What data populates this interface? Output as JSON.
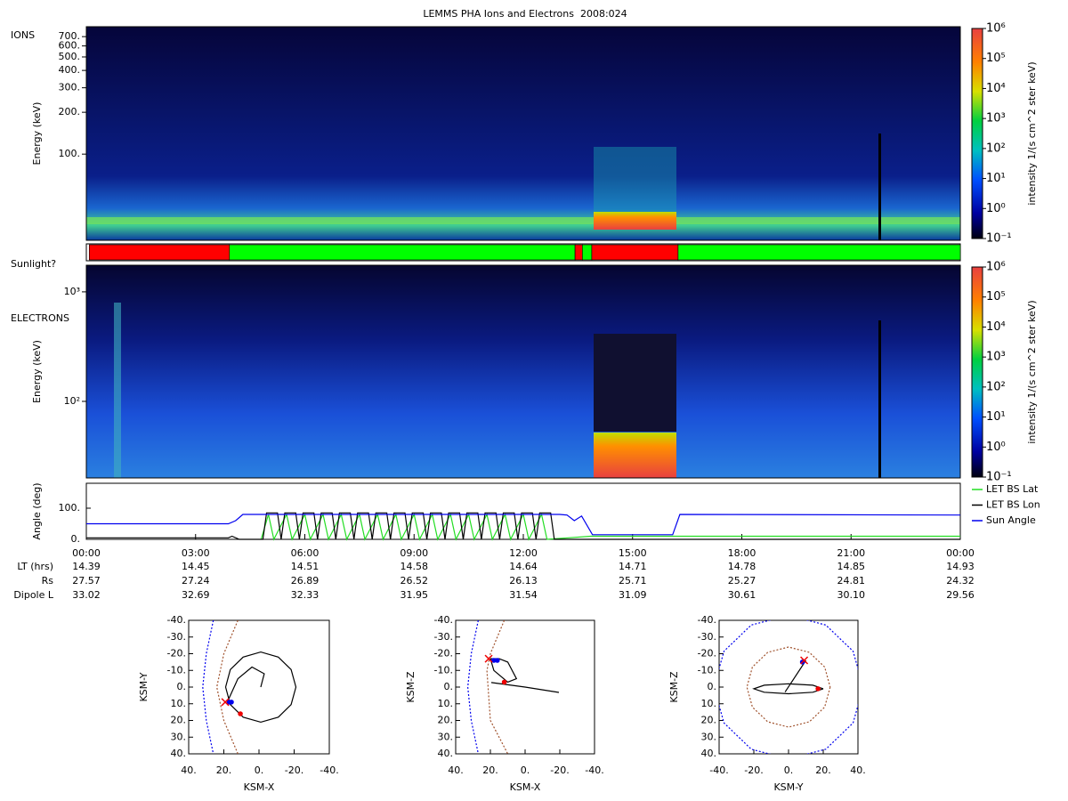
{
  "title": "LEMMS PHA Ions and Electrons  2008:024",
  "chart_data": [
    {
      "type": "spectrogram",
      "panel_label": "IONS",
      "ylabel": "Energy (keV)",
      "yscale": "log",
      "ylim": [
        24,
        825
      ],
      "yticks": [
        {
          "value": 100,
          "label": "100."
        },
        {
          "value": 200,
          "label": "200."
        },
        {
          "value": 300,
          "label": "300."
        },
        {
          "value": 400,
          "label": "400."
        },
        {
          "value": 500,
          "label": "500."
        },
        {
          "value": 600,
          "label": "600."
        },
        {
          "value": 700,
          "label": "700."
        }
      ],
      "colorbar": {
        "label": "intensity 1/(s cm^2 ster keV)",
        "scale": "log",
        "lim": [
          0.1,
          1000000
        ],
        "ticks": [
          {
            "value": 0.1,
            "label": "10⁻¹"
          },
          {
            "value": 1,
            "label": "10⁰"
          },
          {
            "value": 10,
            "label": "10¹"
          },
          {
            "value": 100,
            "label": "10²"
          },
          {
            "value": 1000,
            "label": "10³"
          },
          {
            "value": 10000,
            "label": "10⁴"
          },
          {
            "value": 100000,
            "label": "10⁵"
          },
          {
            "value": 1000000,
            "label": "10⁶"
          }
        ]
      }
    },
    {
      "type": "timeline",
      "label": "Sunlight?",
      "xlim": [
        0,
        24
      ],
      "segments": [
        {
          "start": 0.08,
          "end": 3.93,
          "color": "#ff0000"
        },
        {
          "start": 3.93,
          "end": 13.42,
          "color": "#00ff00"
        },
        {
          "start": 13.42,
          "end": 13.62,
          "color": "#ff0000"
        },
        {
          "start": 13.62,
          "end": 13.88,
          "color": "#00ff00"
        },
        {
          "start": 13.88,
          "end": 16.25,
          "color": "#ff0000"
        },
        {
          "start": 16.25,
          "end": 24,
          "color": "#00ff00"
        }
      ]
    },
    {
      "type": "spectrogram",
      "panel_label": "ELECTRONS",
      "ylabel": "Energy (keV)",
      "yscale": "log",
      "ylim": [
        20,
        1750
      ],
      "yticks": [
        {
          "value": 100,
          "label": "10²"
        },
        {
          "value": 1000,
          "label": "10³"
        }
      ],
      "colorbar": {
        "label": "intensity 1/(s cm^2 ster keV)",
        "scale": "log",
        "lim": [
          0.1,
          1000000
        ],
        "ticks": [
          {
            "value": 0.1,
            "label": "10⁻¹"
          },
          {
            "value": 1,
            "label": "10⁰"
          },
          {
            "value": 10,
            "label": "10¹"
          },
          {
            "value": 100,
            "label": "10²"
          },
          {
            "value": 1000,
            "label": "10³"
          },
          {
            "value": 10000,
            "label": "10⁴"
          },
          {
            "value": 100000,
            "label": "10⁵"
          },
          {
            "value": 1000000,
            "label": "10⁶"
          }
        ]
      }
    },
    {
      "type": "line",
      "ylabel": "Angle (deg)",
      "xlim": [
        0,
        24
      ],
      "ylim": [
        0,
        180
      ],
      "legend": "right",
      "yticks": [
        {
          "value": 0,
          "label": "0."
        },
        {
          "value": 100,
          "label": "100."
        }
      ],
      "xticks": [
        {
          "value": 0,
          "label": "00:00"
        },
        {
          "value": 3,
          "label": "03:00"
        },
        {
          "value": 6,
          "label": "06:00"
        },
        {
          "value": 9,
          "label": "09:00"
        },
        {
          "value": 12,
          "label": "12:00"
        },
        {
          "value": 15,
          "label": "15:00"
        },
        {
          "value": 18,
          "label": "18:00"
        },
        {
          "value": 21,
          "label": "21:00"
        },
        {
          "value": 24,
          "label": "00:00"
        }
      ],
      "series": [
        {
          "name": "LET BS Lat",
          "color": "#22dd22",
          "x": [
            4.8,
            5.0,
            5.15,
            5.5,
            5.65,
            6.0,
            6.15,
            6.5,
            6.65,
            7.0,
            7.15,
            7.5,
            7.65,
            8.0,
            8.15,
            8.5,
            8.65,
            9.0,
            9.15,
            9.5,
            9.65,
            10.0,
            10.15,
            10.5,
            10.65,
            11.0,
            11.15,
            11.5,
            11.65,
            12.0,
            12.15,
            12.5,
            12.65,
            13.85,
            24
          ],
          "values": [
            0,
            80,
            0,
            80,
            0,
            80,
            0,
            80,
            0,
            80,
            0,
            80,
            0,
            80,
            0,
            80,
            0,
            80,
            0,
            80,
            0,
            80,
            0,
            80,
            0,
            80,
            0,
            80,
            0,
            80,
            0,
            80,
            0,
            10,
            10
          ]
        },
        {
          "name": "LET BS Lon",
          "color": "#000000",
          "x": [
            0,
            3.9,
            4.0,
            4.2,
            4.85,
            4.95,
            5.25,
            5.35,
            5.45,
            5.75,
            5.85,
            5.95,
            6.25,
            6.35,
            6.45,
            6.75,
            6.85,
            6.95,
            7.25,
            7.35,
            7.45,
            7.75,
            7.85,
            7.95,
            8.25,
            8.35,
            8.45,
            8.75,
            8.85,
            8.95,
            9.25,
            9.35,
            9.45,
            9.75,
            9.85,
            9.95,
            10.25,
            10.35,
            10.45,
            10.75,
            10.85,
            10.95,
            11.25,
            11.35,
            11.45,
            11.75,
            11.85,
            11.95,
            12.25,
            12.35,
            12.45,
            12.75,
            12.85,
            24
          ],
          "values": [
            5,
            5,
            10,
            0,
            0,
            85,
            85,
            0,
            85,
            85,
            0,
            85,
            85,
            0,
            85,
            85,
            0,
            85,
            85,
            0,
            85,
            85,
            0,
            85,
            85,
            0,
            85,
            85,
            0,
            85,
            85,
            0,
            85,
            85,
            0,
            85,
            85,
            0,
            85,
            85,
            0,
            85,
            85,
            0,
            85,
            85,
            0,
            85,
            85,
            0,
            85,
            85,
            0,
            0
          ]
        },
        {
          "name": "Sun Angle",
          "color": "#0000ee",
          "x": [
            0,
            3.9,
            4.1,
            4.3,
            13.0,
            13.2,
            13.4,
            13.6,
            13.9,
            16.1,
            16.3,
            24
          ],
          "values": [
            50,
            50,
            60,
            80,
            80,
            78,
            60,
            75,
            15,
            15,
            80,
            78
          ]
        }
      ],
      "ephemeris": {
        "labels": [
          "LT (hrs)",
          "Rs",
          "Dipole L"
        ],
        "rows": [
          [
            "14.39",
            "14.45",
            "14.51",
            "14.58",
            "14.64",
            "14.71",
            "14.78",
            "14.85",
            "14.93"
          ],
          [
            "27.57",
            "27.24",
            "26.89",
            "26.52",
            "26.13",
            "25.71",
            "25.27",
            "24.81",
            "24.32"
          ],
          [
            "33.02",
            "32.69",
            "32.33",
            "31.95",
            "31.54",
            "31.09",
            "30.61",
            "30.10",
            "29.56"
          ]
        ]
      }
    },
    {
      "type": "orbit",
      "xlabel": "KSM-X",
      "ylabel": "KSM-Y",
      "xlim": [
        40,
        -40
      ],
      "ylim": [
        40,
        -40
      ],
      "xticks": [
        {
          "value": 40,
          "label": "40."
        },
        {
          "value": 20,
          "label": "20."
        },
        {
          "value": 0,
          "label": "0."
        },
        {
          "value": -20,
          "label": "-20."
        },
        {
          "value": -40,
          "label": "-40."
        }
      ],
      "yticks": [
        {
          "value": -40,
          "label": "-40."
        },
        {
          "value": -30,
          "label": "-30."
        },
        {
          "value": -20,
          "label": "-20."
        },
        {
          "value": -10,
          "label": "-10."
        },
        {
          "value": 0,
          "label": "0."
        },
        {
          "value": 10,
          "label": "10."
        },
        {
          "value": 20,
          "label": "20."
        },
        {
          "value": 30,
          "label": "30."
        },
        {
          "value": 40,
          "label": "40."
        }
      ],
      "series": [
        {
          "style": "dashed",
          "color": "#0000ee",
          "x": [
            26,
            30,
            32,
            30,
            26
          ],
          "values": [
            -40,
            -20,
            0,
            20,
            40
          ]
        },
        {
          "style": "dashed",
          "color": "#a0522d",
          "x": [
            12,
            20,
            24,
            20,
            12
          ],
          "values": [
            -40,
            -20,
            0,
            20,
            40
          ]
        },
        {
          "style": "line",
          "color": "#000000",
          "x": [
            19,
            16.3,
            9,
            -1,
            -11,
            -18.3,
            -21,
            -18.3,
            -11,
            -1,
            9,
            16.3,
            19,
            null,
            18,
            12,
            4,
            -3,
            -1
          ],
          "values": [
            0,
            -10.5,
            -18,
            -21,
            -18,
            -10.5,
            0,
            10.5,
            18,
            21,
            18,
            10.5,
            0,
            null,
            9,
            -5,
            -12,
            -8,
            0
          ]
        },
        {
          "style": "dot",
          "color": "#0000ee",
          "x": [
            15.7,
            17
          ],
          "values": [
            9,
            9
          ]
        },
        {
          "style": "x",
          "color": "#ee0000",
          "x": [
            19.2
          ],
          "values": [
            9
          ]
        },
        {
          "style": "dot",
          "color": "#ee0000",
          "x": [
            10.6
          ],
          "values": [
            16
          ]
        }
      ]
    },
    {
      "type": "orbit",
      "xlabel": "KSM-X",
      "ylabel": "KSM-Z",
      "xlim": [
        40,
        -40
      ],
      "ylim": [
        40,
        -40
      ],
      "xticks": [
        {
          "value": 40,
          "label": "40."
        },
        {
          "value": 20,
          "label": "20."
        },
        {
          "value": 0,
          "label": "0."
        },
        {
          "value": -20,
          "label": "-20."
        },
        {
          "value": -40,
          "label": "-40."
        }
      ],
      "yticks": [
        {
          "value": -40,
          "label": "-40."
        },
        {
          "value": -30,
          "label": "-30."
        },
        {
          "value": -20,
          "label": "-20."
        },
        {
          "value": -10,
          "label": "-10."
        },
        {
          "value": 0,
          "label": "0."
        },
        {
          "value": 10,
          "label": "10."
        },
        {
          "value": 20,
          "label": "20."
        },
        {
          "value": 30,
          "label": "30."
        },
        {
          "value": 40,
          "label": "40."
        }
      ],
      "series": [
        {
          "style": "dashed",
          "color": "#0000ee",
          "x": [
            27,
            31,
            33,
            31,
            27
          ],
          "values": [
            -40,
            -20,
            0,
            20,
            40
          ]
        },
        {
          "style": "dashed",
          "color": "#a0522d",
          "x": [
            12,
            20,
            22,
            20,
            10
          ],
          "values": [
            -40,
            -20,
            -10,
            20,
            40
          ]
        },
        {
          "style": "line",
          "color": "#000000",
          "x": [
            20,
            15,
            10,
            5,
            10,
            18,
            20,
            null,
            19.5,
            0,
            -19.5
          ],
          "values": [
            -17,
            -17,
            -15,
            -5,
            -3,
            -10,
            -17,
            null,
            -2.7,
            0,
            3.2
          ]
        },
        {
          "style": "dot",
          "color": "#0000ee",
          "x": [
            16,
            18
          ],
          "values": [
            -16,
            -16
          ]
        },
        {
          "style": "x",
          "color": "#ee0000",
          "x": [
            21
          ],
          "values": [
            -17
          ]
        },
        {
          "style": "dot",
          "color": "#ee0000",
          "x": [
            12
          ],
          "values": [
            -3
          ]
        }
      ]
    },
    {
      "type": "orbit",
      "xlabel": "KSM-Y",
      "ylabel": "KSM-Z",
      "xlim": [
        -40,
        40
      ],
      "ylim": [
        40,
        -40
      ],
      "xticks": [
        {
          "value": -40,
          "label": "-40."
        },
        {
          "value": -20,
          "label": "-20."
        },
        {
          "value": 0,
          "label": "0."
        },
        {
          "value": 20,
          "label": "20."
        },
        {
          "value": 40,
          "label": "40."
        }
      ],
      "yticks": [
        {
          "value": -40,
          "label": "-40."
        },
        {
          "value": -30,
          "label": "-30."
        },
        {
          "value": -20,
          "label": "-20."
        },
        {
          "value": -10,
          "label": "-10."
        },
        {
          "value": 0,
          "label": "0."
        },
        {
          "value": 10,
          "label": "10."
        },
        {
          "value": 20,
          "label": "20."
        },
        {
          "value": 30,
          "label": "30."
        },
        {
          "value": 40,
          "label": "40."
        }
      ],
      "series": [
        {
          "style": "dashed",
          "color": "#0000ee",
          "x": [
            43,
            37.2,
            21.5,
            0,
            -21.5,
            -37.2,
            -43,
            -37.2,
            -21.5,
            0,
            21.5,
            37.2,
            43
          ],
          "values": [
            0,
            21.5,
            37.2,
            43,
            37.2,
            21.5,
            0,
            -21.5,
            -37.2,
            -43,
            -37.2,
            -21.5,
            0
          ]
        },
        {
          "style": "dashed",
          "color": "#a0522d",
          "x": [
            24,
            20.8,
            12,
            0,
            -12,
            -20.8,
            -24,
            -20.8,
            -12,
            0,
            12,
            20.8,
            24
          ],
          "values": [
            0,
            12,
            20.8,
            24,
            20.8,
            12,
            0,
            -12,
            -20.8,
            -24,
            -20.8,
            -12,
            0
          ]
        },
        {
          "style": "line",
          "color": "#000000",
          "x": [
            20,
            14,
            0,
            -14,
            -20,
            -14,
            0,
            14,
            20,
            null,
            -2,
            10
          ],
          "values": [
            1,
            3.1,
            4,
            3.1,
            1,
            -1.1,
            -2,
            -1.1,
            1,
            null,
            3,
            -16
          ]
        },
        {
          "style": "dot",
          "color": "#0000ee",
          "x": [
            8
          ],
          "values": [
            -15
          ]
        },
        {
          "style": "x",
          "color": "#ee0000",
          "x": [
            9
          ],
          "values": [
            -16
          ]
        },
        {
          "style": "dot",
          "color": "#ee0000",
          "x": [
            17
          ],
          "values": [
            1
          ]
        }
      ]
    }
  ]
}
